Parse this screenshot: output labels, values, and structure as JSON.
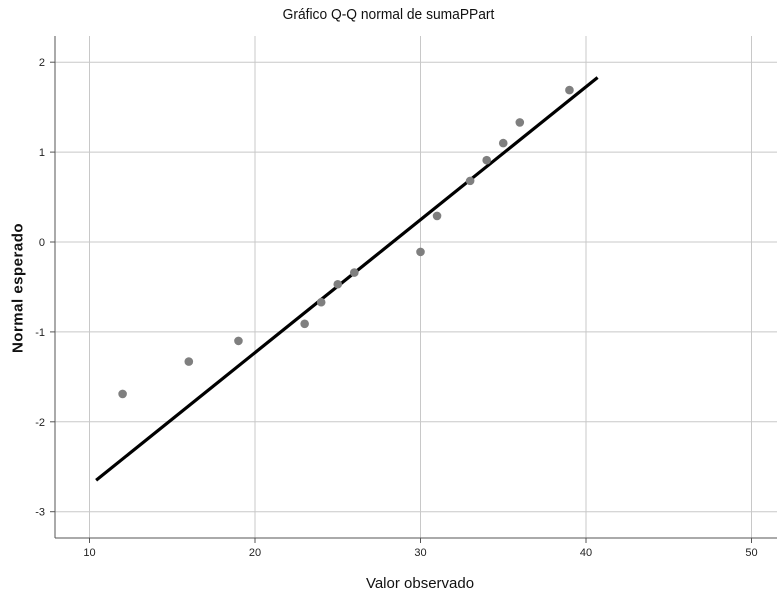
{
  "chart_data": {
    "type": "scatter",
    "title": "Gráfico Q-Q normal de sumaPPart",
    "xlabel": "Valor observado",
    "ylabel": "Normal esperado",
    "xlim": [
      8,
      51
    ],
    "ylim": [
      -3.3,
      2.3
    ],
    "xticks": [
      10,
      20,
      30,
      40,
      50
    ],
    "yticks": [
      -3,
      -2,
      -1,
      0,
      1,
      2
    ],
    "grid": true,
    "colors": {
      "points": "#7f7f7f",
      "reference_line": "#000000",
      "grid": "#c8c8c8",
      "axis": "#555555"
    },
    "points": [
      {
        "x": 12,
        "y": -1.69
      },
      {
        "x": 16,
        "y": -1.33
      },
      {
        "x": 19,
        "y": -1.1
      },
      {
        "x": 23,
        "y": -0.91
      },
      {
        "x": 24,
        "y": -0.67
      },
      {
        "x": 25,
        "y": -0.47
      },
      {
        "x": 26,
        "y": -0.34
      },
      {
        "x": 30,
        "y": -0.11
      },
      {
        "x": 31,
        "y": 0.29
      },
      {
        "x": 33,
        "y": 0.68
      },
      {
        "x": 34,
        "y": 0.91
      },
      {
        "x": 35,
        "y": 1.1
      },
      {
        "x": 36,
        "y": 1.33
      },
      {
        "x": 39,
        "y": 1.69
      }
    ],
    "reference_line": {
      "x": [
        10.4,
        40.7
      ],
      "y": [
        -2.65,
        1.83
      ]
    }
  }
}
